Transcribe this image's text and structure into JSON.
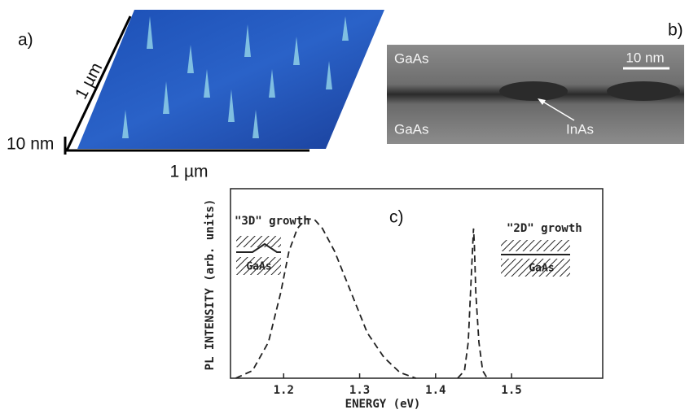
{
  "panels": {
    "a": {
      "label": "a)",
      "side_scale": "1 µm",
      "height_scale": "10 nm",
      "bottom_scale": "1 µm"
    },
    "b": {
      "label": "b)",
      "top_material": "GaAs",
      "bottom_material": "GaAs",
      "scale_bar": "10 nm",
      "dot_material": "InAs"
    }
  },
  "chart_data": {
    "type": "line",
    "panel_label": "c)",
    "xlabel": "ENERGY (eV)",
    "ylabel": "PL INTENSITY (arb. units)",
    "annotations": [
      "\"3D\" growth",
      "GaAs",
      "\"2D\" growth",
      "GaAs"
    ],
    "xlim": [
      1.13,
      1.62
    ],
    "ylim": [
      0,
      1
    ],
    "xticks": [
      1.2,
      1.3,
      1.4,
      1.5
    ],
    "line_style": "dashed",
    "series": [
      {
        "color": "#222222",
        "x": [
          1.137,
          1.159,
          1.18,
          1.196,
          1.207,
          1.218,
          1.229,
          1.24,
          1.251,
          1.267,
          1.289,
          1.31,
          1.332,
          1.353,
          1.374,
          1.4,
          1.429,
          1.438,
          1.443,
          1.446,
          1.449,
          1.45,
          1.451,
          1.453,
          1.457,
          1.462,
          1.468
        ],
        "values": [
          0,
          0.04,
          0.19,
          0.45,
          0.67,
          0.79,
          0.84,
          0.84,
          0.79,
          0.67,
          0.45,
          0.24,
          0.11,
          0.03,
          0,
          null,
          0,
          0.04,
          0.19,
          0.45,
          0.71,
          0.79,
          0.71,
          0.45,
          0.19,
          0.04,
          0
        ]
      }
    ]
  }
}
